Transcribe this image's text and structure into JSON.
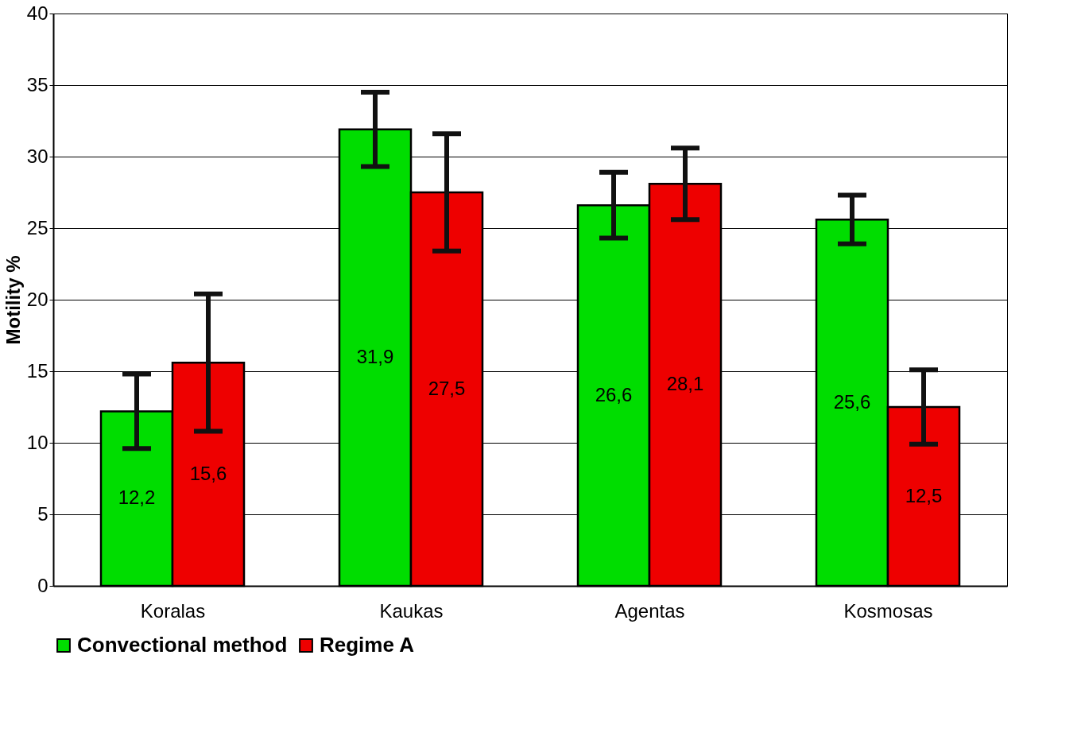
{
  "chart_data": {
    "type": "bar",
    "ylabel": "Motility %",
    "categories": [
      "Koralas",
      "Kaukas",
      "Agentas",
      "Kosmosas"
    ],
    "series": [
      {
        "name": "Convectional method",
        "color": "#00dd00",
        "values": [
          12.2,
          31.9,
          26.6,
          25.6
        ],
        "value_labels": [
          "12,2",
          "31,9",
          "26,6",
          "25,6"
        ],
        "errors": [
          2.6,
          2.6,
          2.3,
          1.7
        ]
      },
      {
        "name": "Regime A",
        "color": "#ee0000",
        "values": [
          15.6,
          27.5,
          28.1,
          12.5
        ],
        "value_labels": [
          "15,6",
          "27,5",
          "28,1",
          "12,5"
        ],
        "errors": [
          4.8,
          4.1,
          2.5,
          2.6
        ]
      }
    ],
    "ylim": [
      0,
      40
    ],
    "yticks": [
      0,
      5,
      10,
      15,
      20,
      25,
      30,
      35,
      40
    ],
    "grid": "y",
    "legend": "bottom"
  }
}
